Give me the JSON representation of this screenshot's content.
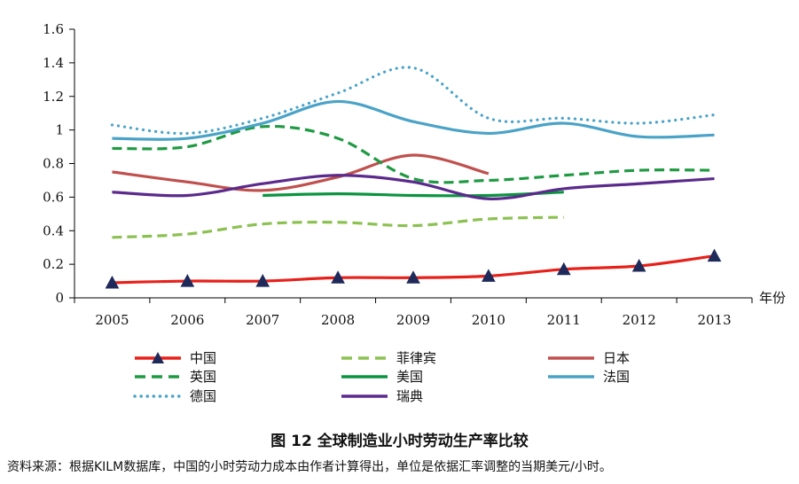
{
  "chart_data": {
    "type": "line",
    "title": "图 12  全球制造业小时劳动生产率比较",
    "source_note": "资料来源：根据KILM数据库，中国的小时劳动力成本由作者计算得出，单位是依据汇率调整的当期美元/小时。",
    "xlabel": "年份",
    "ylabel": "",
    "categories": [
      "2005",
      "2006",
      "2007",
      "2008",
      "2009",
      "2010",
      "2011",
      "2012",
      "2013"
    ],
    "ylim": [
      0,
      1.6
    ],
    "yticks": [
      "0",
      "0.2",
      "0.4",
      "0.6",
      "0.8",
      "1",
      "1.2",
      "1.4",
      "1.6"
    ],
    "series": [
      {
        "name": "中国",
        "color": "#e8201a",
        "style": "solid",
        "marker": "triangle",
        "values": [
          0.09,
          0.1,
          0.1,
          0.12,
          0.12,
          0.13,
          0.17,
          0.19,
          0.25
        ]
      },
      {
        "name": "菲律宾",
        "color": "#8cc152",
        "style": "dashed",
        "marker": "none",
        "values": [
          0.36,
          0.38,
          0.44,
          0.45,
          0.43,
          0.47,
          0.48,
          null,
          null
        ]
      },
      {
        "name": "日本",
        "color": "#c0504d",
        "style": "solid",
        "marker": "none",
        "values": [
          0.75,
          0.69,
          0.64,
          0.72,
          0.85,
          0.74,
          null,
          null,
          null
        ]
      },
      {
        "name": "英国",
        "color": "#1f9a43",
        "style": "dashed",
        "marker": "none",
        "values": [
          0.89,
          0.9,
          1.02,
          0.95,
          0.71,
          0.7,
          0.73,
          0.76,
          0.76
        ]
      },
      {
        "name": "美国",
        "color": "#0a9440",
        "style": "solid",
        "marker": "none",
        "values": [
          null,
          null,
          0.61,
          0.62,
          0.61,
          0.61,
          0.63,
          null,
          null
        ]
      },
      {
        "name": "法国",
        "color": "#4aa3c7",
        "style": "solid",
        "marker": "none",
        "values": [
          0.95,
          0.95,
          1.04,
          1.17,
          1.05,
          0.98,
          1.04,
          0.96,
          0.97
        ]
      },
      {
        "name": "德国",
        "color": "#4aa3c7",
        "style": "dotted",
        "marker": "none",
        "values": [
          1.03,
          0.98,
          1.07,
          1.22,
          1.37,
          1.07,
          1.07,
          1.04,
          1.09
        ]
      },
      {
        "name": "瑞典",
        "color": "#5b2a8c",
        "style": "solid",
        "marker": "none",
        "values": [
          0.63,
          0.61,
          0.68,
          0.73,
          0.69,
          0.59,
          0.65,
          0.68,
          0.71
        ]
      }
    ]
  }
}
